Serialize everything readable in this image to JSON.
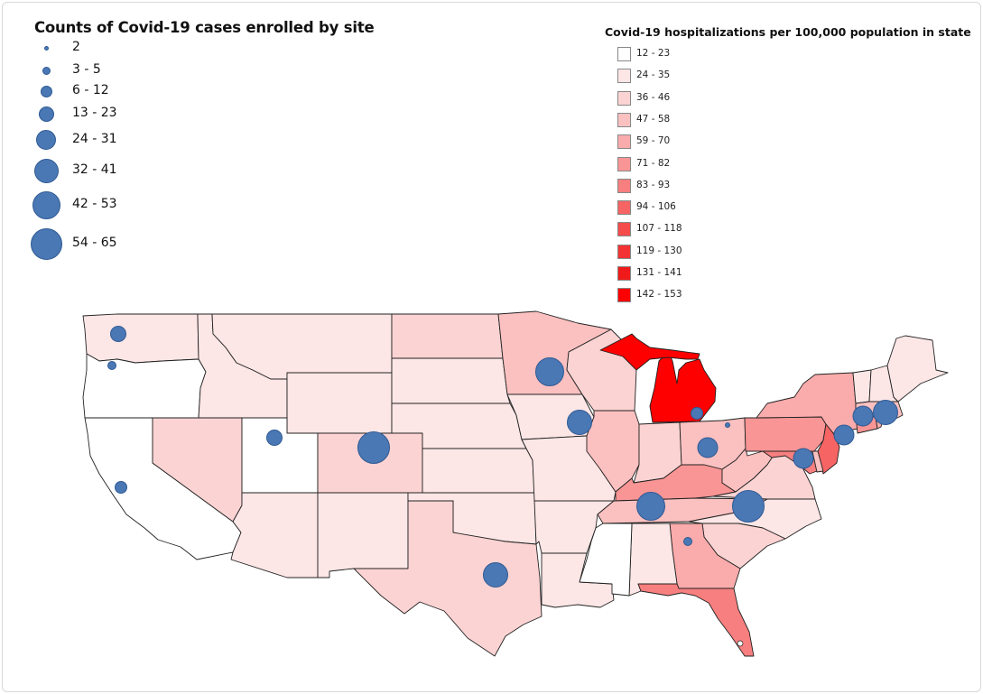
{
  "size_legend": {
    "title": "Counts of Covid-19 cases enrolled by site",
    "items": [
      "2",
      "3 - 5",
      "6 - 12",
      "13 - 23",
      "24 - 31",
      "32 - 41",
      "42 - 53",
      "54 - 65"
    ],
    "marker_color": "#4a78b4"
  },
  "color_legend": {
    "title": "Covid-19 hospitalizations per 100,000 population in state",
    "items": [
      {
        "label": "12 - 23",
        "color": "#ffffff"
      },
      {
        "label": "24 - 35",
        "color": "#fde6e6"
      },
      {
        "label": "36 - 46",
        "color": "#fcd3d3"
      },
      {
        "label": "47 - 58",
        "color": "#fbc0c0"
      },
      {
        "label": "59 - 70",
        "color": "#faabab"
      },
      {
        "label": "71 - 82",
        "color": "#f99595"
      },
      {
        "label": "83 - 93",
        "color": "#f77f7f"
      },
      {
        "label": "94 - 106",
        "color": "#f66464"
      },
      {
        "label": "107 - 118",
        "color": "#f54b4b"
      },
      {
        "label": "119 - 130",
        "color": "#f33333"
      },
      {
        "label": "131 - 141",
        "color": "#f11a1a"
      },
      {
        "label": "142 - 153",
        "color": "#ff0000"
      }
    ]
  },
  "state_class": {
    "WA": 1,
    "OR": 0,
    "CA": 0,
    "NV": 2,
    "ID": 1,
    "MT": 1,
    "WY": 1,
    "UT": 0,
    "CO": 2,
    "AZ": 1,
    "NM": 1,
    "ND": 2,
    "SD": 1,
    "NE": 1,
    "KS": 1,
    "OK": 1,
    "TX": 2,
    "MN": 3,
    "IA": 1,
    "MO": 1,
    "AR": 1,
    "LA": 1,
    "WI": 2,
    "IL": 3,
    "MI": 11,
    "IN": 2,
    "OH": 3,
    "KY": 5,
    "TN": 3,
    "MS": 0,
    "AL": 1,
    "GA": 4,
    "FL": 6,
    "SC": 2,
    "NC": 1,
    "VA": 2,
    "WV": 3,
    "PA": 5,
    "NY": 4,
    "NJ": 7,
    "MD": 6,
    "DE": 3,
    "CT": 5,
    "RI": 4,
    "MA": 3,
    "VT": 1,
    "NH": 1,
    "ME": 1
  },
  "sites": [
    3,
    1,
    2,
    3,
    7,
    5,
    6,
    5,
    2,
    0,
    4,
    6,
    7,
    1,
    4,
    4,
    4,
    5
  ]
}
